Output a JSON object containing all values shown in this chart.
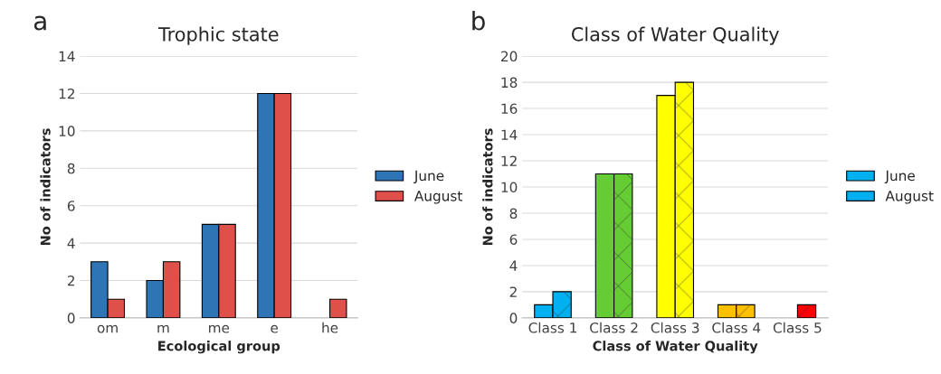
{
  "chart_data": [
    {
      "type": "bar",
      "title": "Trophic state",
      "xlabel": "Ecological group",
      "ylabel": "No of indicators",
      "annotations": [
        "a"
      ],
      "categories": [
        "om",
        "m",
        "me",
        "e",
        "he"
      ],
      "series": [
        {
          "name": "June",
          "color": "#2e75b6",
          "values": [
            3,
            2,
            5,
            12,
            null
          ]
        },
        {
          "name": "August",
          "color": "#e0504b",
          "values": [
            1,
            3,
            5,
            12,
            1
          ]
        }
      ],
      "ylim": [
        0,
        14
      ],
      "yticks": [
        0,
        2,
        4,
        6,
        8,
        10,
        12,
        14
      ],
      "grid": "y",
      "legend": "right"
    },
    {
      "type": "bar",
      "title": "Class of Water Quality",
      "xlabel": "Class of Water Quality",
      "ylabel": "No of indicators",
      "annotations": [
        "b"
      ],
      "categories": [
        "Class 1",
        "Class 2",
        "Class 3",
        "Class 4",
        "Class 5"
      ],
      "series": [
        {
          "name": "June",
          "color": "#00b0f0",
          "colors": [
            "#00b0f0",
            "#66cc33",
            "#ffff00",
            "#ffc000",
            "#ff0000"
          ],
          "values": [
            1,
            11,
            17,
            1,
            null
          ]
        },
        {
          "name": "August",
          "color": "#00b0f0",
          "colors": [
            "#00b0f0",
            "#66cc33",
            "#ffff00",
            "#ffc000",
            "#ff0000"
          ],
          "values": [
            2,
            11,
            18,
            1,
            1
          ]
        }
      ],
      "ylim": [
        0,
        20
      ],
      "yticks": [
        0,
        2,
        4,
        6,
        8,
        10,
        12,
        14,
        16,
        18,
        20
      ],
      "grid": "y",
      "legend": "right"
    }
  ]
}
